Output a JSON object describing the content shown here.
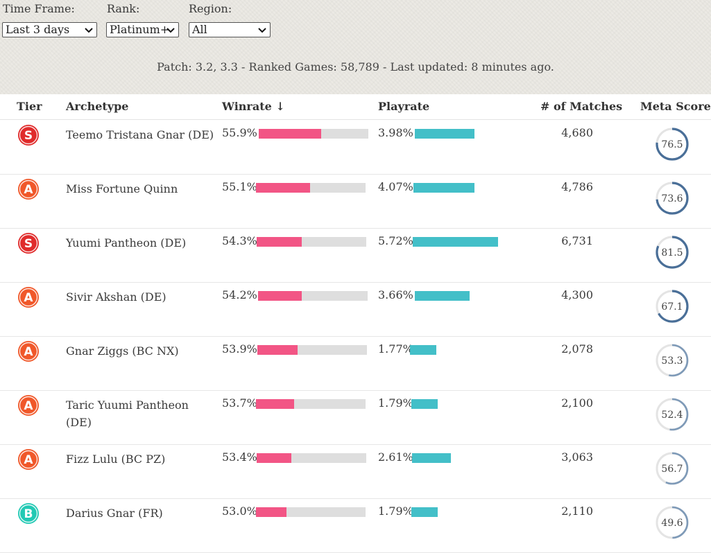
{
  "filters": {
    "time_frame": {
      "label": "Time Frame:",
      "value": "Last 3 days"
    },
    "rank": {
      "label": "Rank:",
      "value": "Platinum+"
    },
    "region": {
      "label": "Region:",
      "value": "All"
    }
  },
  "patch_info": "Patch: 3.2, 3.3 - Ranked Games: 58,789 - Last updated: 8 minutes ago.",
  "columns": {
    "tier": "Tier",
    "archetype": "Archetype",
    "winrate": "Winrate ↓",
    "playrate": "Playrate",
    "matches": "# of Matches",
    "meta_score": "Meta Score"
  },
  "colors": {
    "tier_S": "#e02b2b",
    "tier_A": "#f0582a",
    "tier_B": "#22c9b4",
    "winrate_bar": "#f25585",
    "playrate_bar": "#43bfc8",
    "meta_ring": "#4a6f98"
  },
  "rows": [
    {
      "tier": "S",
      "archetype": "Teemo Tristana Gnar (DE)",
      "winrate": "55.9%",
      "winrate_value": 55.9,
      "playrate": "3.98%",
      "playrate_value": 3.98,
      "matches": "4,680",
      "meta_score": "76.5",
      "meta_value": 76.5
    },
    {
      "tier": "A",
      "archetype": "Miss Fortune Quinn",
      "winrate": "55.1%",
      "winrate_value": 55.1,
      "playrate": "4.07%",
      "playrate_value": 4.07,
      "matches": "4,786",
      "meta_score": "73.6",
      "meta_value": 73.6
    },
    {
      "tier": "S",
      "archetype": "Yuumi Pantheon (DE)",
      "winrate": "54.3%",
      "winrate_value": 54.3,
      "playrate": "5.72%",
      "playrate_value": 5.72,
      "matches": "6,731",
      "meta_score": "81.5",
      "meta_value": 81.5
    },
    {
      "tier": "A",
      "archetype": "Sivir Akshan (DE)",
      "winrate": "54.2%",
      "winrate_value": 54.2,
      "playrate": "3.66%",
      "playrate_value": 3.66,
      "matches": "4,300",
      "meta_score": "67.1",
      "meta_value": 67.1
    },
    {
      "tier": "A",
      "archetype": "Gnar Ziggs (BC NX)",
      "winrate": "53.9%",
      "winrate_value": 53.9,
      "playrate": "1.77%",
      "playrate_value": 1.77,
      "matches": "2,078",
      "meta_score": "53.3",
      "meta_value": 53.3
    },
    {
      "tier": "A",
      "archetype": "Taric Yuumi Pantheon (DE)",
      "winrate": "53.7%",
      "winrate_value": 53.7,
      "playrate": "1.79%",
      "playrate_value": 1.79,
      "matches": "2,100",
      "meta_score": "52.4",
      "meta_value": 52.4
    },
    {
      "tier": "A",
      "archetype": "Fizz Lulu (BC PZ)",
      "winrate": "53.4%",
      "winrate_value": 53.4,
      "playrate": "2.61%",
      "playrate_value": 2.61,
      "matches": "3,063",
      "meta_score": "56.7",
      "meta_value": 56.7
    },
    {
      "tier": "B",
      "archetype": "Darius Gnar (FR)",
      "winrate": "53.0%",
      "winrate_value": 53.0,
      "playrate": "1.79%",
      "playrate_value": 1.79,
      "matches": "2,110",
      "meta_score": "49.6",
      "meta_value": 49.6
    }
  ]
}
